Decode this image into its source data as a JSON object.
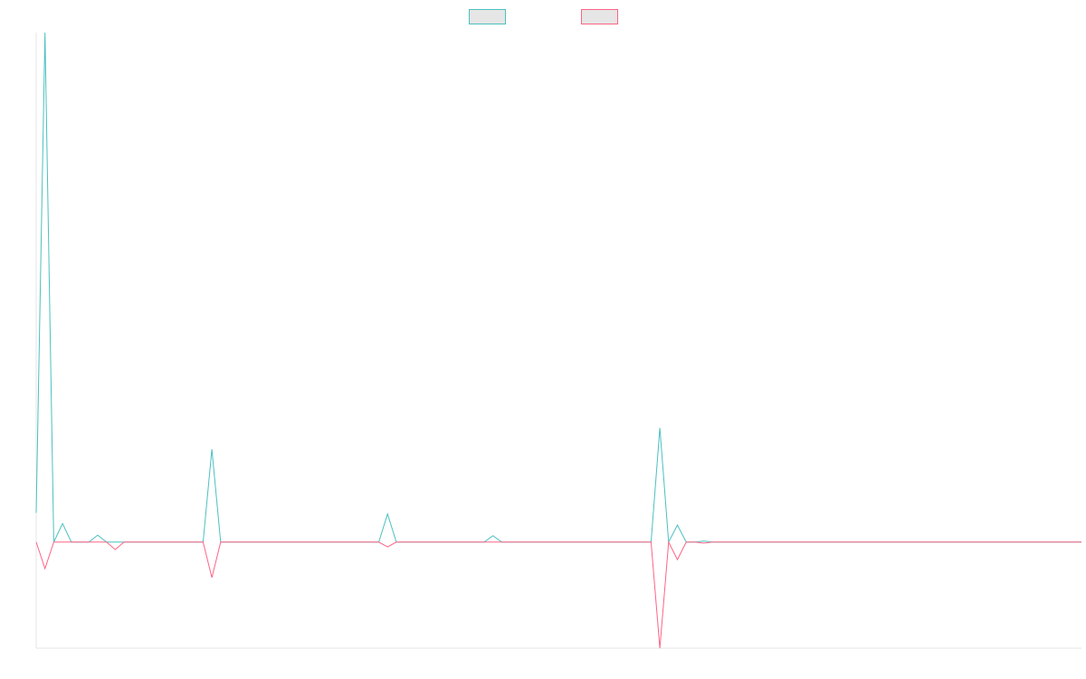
{
  "chart_data": {
    "type": "line",
    "title": "",
    "xlabel": "",
    "ylabel": "",
    "grid": false,
    "legend_position": "top-center",
    "ylim": [
      -20,
      96
    ],
    "x": [
      0,
      1,
      2,
      3,
      4,
      5,
      6,
      7,
      8,
      9,
      10,
      11,
      12,
      13,
      14,
      15,
      16,
      17,
      18,
      19,
      20,
      21,
      22,
      23,
      24,
      25,
      26,
      27,
      28,
      29,
      30,
      31,
      32,
      33,
      34,
      35,
      36,
      37,
      38,
      39,
      40,
      41,
      42,
      43,
      44,
      45,
      46,
      47,
      48,
      49,
      50,
      51,
      52,
      53,
      54,
      55,
      56,
      57,
      58,
      59,
      60,
      61,
      62,
      63,
      64,
      65,
      66,
      67,
      68,
      69,
      70,
      71,
      72,
      73,
      74,
      75,
      76,
      77,
      78,
      79,
      80,
      81,
      82,
      83,
      84,
      85,
      86,
      87,
      88,
      89,
      90,
      91,
      92,
      93,
      94,
      95,
      96,
      97,
      98,
      99,
      100,
      101,
      102,
      103,
      104,
      105,
      106,
      107,
      108,
      109,
      110,
      111,
      112,
      113,
      114,
      115,
      116,
      117,
      118,
      119
    ],
    "series": [
      {
        "name": "",
        "color": "#4bc0c0",
        "values": [
          5.5,
          96,
          0,
          3.5,
          0,
          0,
          0,
          1.3,
          0,
          0,
          0,
          0,
          0,
          0,
          0,
          0,
          0,
          0,
          0,
          0,
          17.5,
          0,
          0,
          0,
          0,
          0,
          0,
          0,
          0,
          0,
          0,
          0,
          0,
          0,
          0,
          0,
          0,
          0,
          0,
          0,
          5.3,
          0,
          0,
          0,
          0,
          0,
          0,
          0,
          0,
          0,
          0,
          0,
          1.2,
          0,
          0,
          0,
          0,
          0,
          0,
          0,
          0,
          0,
          0,
          0,
          0,
          0,
          0,
          0,
          0,
          0,
          0,
          21.5,
          0,
          3.2,
          0,
          0,
          0.2,
          0,
          0,
          0,
          0,
          0,
          0,
          0,
          0,
          0,
          0,
          0,
          0,
          0,
          0,
          0,
          0,
          0,
          0,
          0,
          0,
          0,
          0,
          0,
          0,
          0,
          0,
          0,
          0,
          0,
          0,
          0,
          0,
          0,
          0,
          0,
          0,
          0,
          0,
          0,
          0,
          0,
          0,
          0
        ]
      },
      {
        "name": "",
        "color": "#ff6384",
        "values": [
          0,
          -5,
          0,
          0,
          0,
          0,
          0,
          0,
          0,
          -1.4,
          0,
          0,
          0,
          0,
          0,
          0,
          0,
          0,
          0,
          0,
          -6.7,
          0,
          0,
          0,
          0,
          0,
          0,
          0,
          0,
          0,
          0,
          0,
          0,
          0,
          0,
          0,
          0,
          0,
          0,
          0,
          -0.9,
          0,
          0,
          0,
          0,
          0,
          0,
          0,
          0,
          0,
          0,
          0,
          0,
          0,
          0,
          0,
          0,
          0,
          0,
          0,
          0,
          0,
          0,
          0,
          0,
          0,
          0,
          0,
          0,
          0,
          0,
          -20,
          0,
          -3.3,
          0,
          0,
          -0.2,
          0,
          0,
          0,
          0,
          0,
          0,
          0,
          0,
          0,
          0,
          0,
          0,
          0,
          0,
          0,
          0,
          0,
          0,
          0,
          0,
          0,
          0,
          0,
          0,
          0,
          0,
          0,
          0,
          0,
          0,
          0,
          0,
          0,
          0,
          0,
          0,
          0,
          0,
          0,
          0,
          0,
          0,
          0
        ]
      }
    ]
  }
}
